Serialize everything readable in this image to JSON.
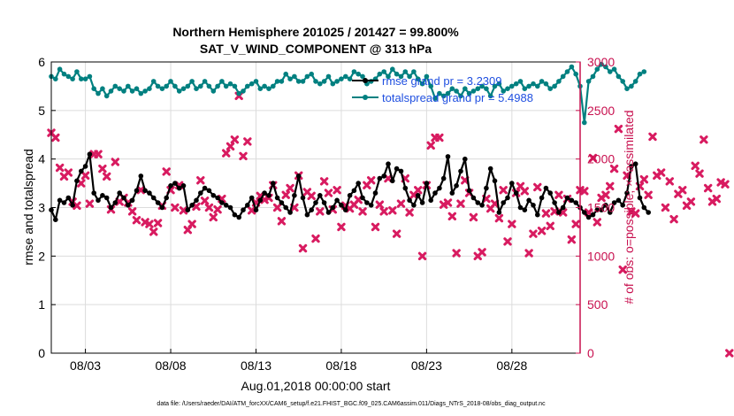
{
  "chart_data": {
    "type": "line",
    "title": "Northern Hemisphere 201025 / 201427 = 99.800%",
    "subtitle": "SAT_V_WIND_COMPONENT @ 313 hPa",
    "xlabel": "Aug.01,2018 00:00:00 start",
    "ylabel": "rmse and totalspread",
    "ylabel_right": "# of obs: o=possible; ×=assimilated",
    "footer": "data file: /Users/raeder/DAI/ATM_forcXX/CAM6_setup/f.e21.FHIST_BGC.f09_025.CAM6assim.011/Diags_NTrS_2018-08/obs_diag_output.nc",
    "x_ticks": [
      {
        "day": 3,
        "label": "08/03"
      },
      {
        "day": 8,
        "label": "08/08"
      },
      {
        "day": 13,
        "label": "08/13"
      },
      {
        "day": 18,
        "label": "08/18"
      },
      {
        "day": 23,
        "label": "08/23"
      },
      {
        "day": 28,
        "label": "08/28"
      }
    ],
    "xlim_days": [
      1.0,
      32.0
    ],
    "ylim": [
      0,
      6
    ],
    "y_ticks": [
      0,
      1,
      2,
      3,
      4,
      5,
      6
    ],
    "ylim_right": [
      0,
      3000
    ],
    "y_ticks_right": [
      0,
      500,
      1000,
      1500,
      2000,
      2500,
      3000
    ],
    "grid": true,
    "legend_position": "top-right",
    "colors": {
      "rmse": "#000000",
      "spread": "#008080",
      "obs": "#d81b60",
      "legend_text": "#1f4fe0",
      "right_axis": "#c8104f",
      "grid": "#dcdcdc"
    },
    "step_days": 0.25,
    "start_day": 1.0,
    "series": [
      {
        "name": "rmse grand pr = 3.2309",
        "axis": "left",
        "values": [
          2.95,
          2.75,
          3.15,
          3.1,
          3.2,
          3.05,
          3.55,
          3.75,
          3.85,
          4.1,
          3.3,
          3.15,
          3.25,
          3.2,
          3.0,
          3.1,
          3.3,
          3.2,
          3.05,
          3.15,
          3.35,
          3.65,
          3.35,
          3.3,
          3.2,
          3.1,
          3.0,
          3.2,
          3.45,
          3.5,
          3.4,
          3.45,
          2.95,
          3.05,
          3.15,
          3.3,
          3.4,
          3.35,
          3.25,
          3.2,
          3.1,
          3.05,
          3.0,
          2.85,
          2.8,
          2.95,
          3.05,
          3.2,
          2.95,
          3.15,
          3.3,
          3.25,
          3.5,
          3.2,
          3.1,
          3.0,
          2.9,
          3.25,
          3.65,
          3.2,
          2.85,
          2.95,
          3.1,
          3.25,
          3.1,
          2.9,
          3.0,
          3.15,
          3.05,
          2.95,
          3.25,
          3.35,
          3.5,
          3.2,
          3.1,
          3.05,
          3.3,
          3.6,
          3.65,
          3.9,
          3.55,
          3.8,
          3.75,
          3.4,
          3.15,
          3.05,
          3.25,
          3.1,
          3.5,
          3.15,
          3.3,
          3.4,
          3.6,
          4.05,
          3.3,
          3.45,
          3.75,
          4.0,
          3.35,
          3.2,
          3.1,
          3.05,
          3.4,
          3.8,
          3.55,
          2.9,
          3.1,
          3.2,
          3.5,
          3.3,
          3.0,
          2.95,
          3.15,
          3.05,
          2.85,
          3.2,
          3.4,
          3.3,
          3.1,
          2.9,
          3.0,
          3.2,
          3.15,
          3.1,
          3.0,
          2.9,
          2.8,
          2.85,
          2.95,
          2.95,
          3.05,
          2.9,
          3.1,
          3.15,
          3.05,
          3.3,
          3.85,
          3.9,
          3.2,
          3.0,
          2.9
        ]
      },
      {
        "name": "totalspread grand pr = 5.4988",
        "axis": "left",
        "values": [
          5.7,
          5.65,
          5.85,
          5.75,
          5.7,
          5.65,
          5.8,
          5.65,
          5.65,
          5.7,
          5.45,
          5.35,
          5.45,
          5.3,
          5.4,
          5.5,
          5.45,
          5.4,
          5.5,
          5.4,
          5.45,
          5.35,
          5.4,
          5.45,
          5.6,
          5.5,
          5.45,
          5.5,
          5.6,
          5.5,
          5.4,
          5.45,
          5.5,
          5.6,
          5.45,
          5.5,
          5.6,
          5.5,
          5.4,
          5.5,
          5.6,
          5.5,
          5.55,
          5.5,
          5.35,
          5.4,
          5.5,
          5.55,
          5.6,
          5.45,
          5.5,
          5.45,
          5.5,
          5.6,
          5.6,
          5.75,
          5.65,
          5.7,
          5.6,
          5.6,
          5.7,
          5.75,
          5.6,
          5.55,
          5.6,
          5.7,
          5.55,
          5.6,
          5.65,
          5.7,
          5.65,
          5.8,
          5.75,
          5.7,
          5.55,
          5.6,
          5.65,
          5.75,
          5.8,
          5.7,
          5.85,
          5.75,
          5.7,
          5.8,
          5.7,
          5.8,
          5.65,
          5.55,
          5.7,
          5.5,
          5.25,
          5.35,
          5.3,
          5.35,
          5.45,
          5.4,
          5.3,
          5.45,
          5.35,
          5.4,
          5.45,
          5.5,
          5.45,
          5.3,
          5.5,
          5.55,
          5.4,
          5.45,
          5.5,
          5.55,
          5.6,
          5.45,
          5.5,
          5.55,
          5.5,
          5.6,
          5.55,
          5.45,
          5.5,
          5.6,
          5.7,
          5.8,
          5.9,
          5.75,
          5.5,
          4.75,
          5.6,
          5.7,
          5.85,
          5.95,
          5.9,
          5.8,
          5.85,
          5.7,
          5.6,
          5.45,
          5.5,
          5.6,
          5.75,
          5.8
        ]
      },
      {
        "name": "assimilated",
        "axis": "right",
        "values": [
          2270,
          2220,
          1910,
          1820,
          1860,
          1560,
          1520,
          1750,
          1830,
          1540,
          2050,
          2050,
          1900,
          1820,
          1480,
          1970,
          1560,
          1600,
          1550,
          1460,
          1370,
          1680,
          1350,
          1330,
          1250,
          1340,
          1520,
          1870,
          1680,
          1500,
          1730,
          1470,
          1270,
          1330,
          1510,
          1780,
          1570,
          1500,
          1400,
          1480,
          1590,
          2060,
          2130,
          2200,
          2650,
          2030,
          2180,
          1470,
          1550,
          1620,
          1580,
          1600,
          1730,
          1500,
          1360,
          1630,
          1700,
          1500,
          1830,
          1080,
          1660,
          1620,
          1180,
          1460,
          1770,
          1650,
          1480,
          1680,
          1300,
          1520,
          1490,
          1530,
          1580,
          1460,
          1730,
          1780,
          1300,
          1530,
          1460,
          1800,
          1470,
          1230,
          1540,
          1800,
          1450,
          1630,
          1680,
          1000,
          1730,
          2140,
          2220,
          2220,
          1530,
          1550,
          1410,
          1030,
          1540,
          1780,
          1650,
          1400,
          1000,
          1040,
          1590,
          1490,
          1540,
          1390,
          1680,
          1150,
          1330,
          1650,
          1720,
          1670,
          1030,
          1230,
          1710,
          1260,
          1440,
          1310,
          1460,
          1630,
          1450,
          1590,
          1170,
          1330,
          1680,
          1670,
          1450,
          2010,
          1350,
          1600,
          1630,
          1720,
          1900,
          2310,
          860,
          1830,
          1460,
          1440,
          1720,
          1790,
          1630,
          2230,
          1830,
          1860,
          1500,
          1770,
          1380,
          1640,
          1680,
          1520,
          1560,
          1930,
          1850,
          2200,
          1700,
          1560,
          1590,
          1760,
          1740,
          0
        ]
      }
    ]
  }
}
